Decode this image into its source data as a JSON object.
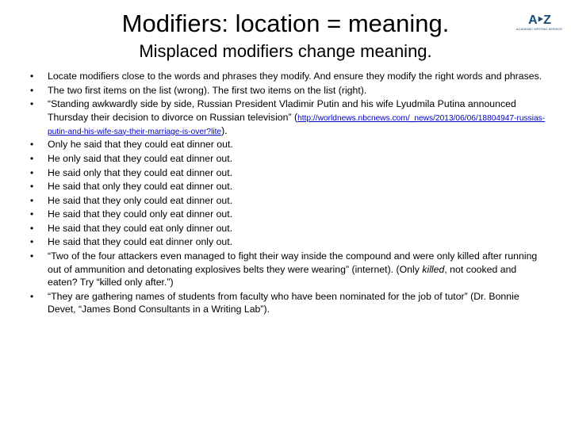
{
  "title": "Modifiers: location = meaning.",
  "subtitle": "Misplaced modifiers change meaning.",
  "logo": {
    "mark": "A‣Z",
    "sub": "ACADEMIC WRITING SERVICE"
  },
  "link": {
    "prefix": "(",
    "url": "http://worldnews.nbcnews.com/_news/2013/06/06/18804947-russias-putin-and-his-wife-say-their-marriage-is-over?lite",
    "suffix": ")."
  },
  "bullets": [
    "Locate modifiers close to the words and phrases they modify. And ensure they modify the right words and phrases.",
    "The two first items on the list (wrong). The first two items on the list (right).",
    "“Standing awkwardly side by side, Russian President Vladimir Putin and his wife Lyudmila Putina announced Thursday their decision to divorce on Russian television”",
    "Only he said that they could eat dinner out.",
    "He only said that they could eat dinner out.",
    "He said only that they could eat dinner out.",
    "He said that only they could eat dinner out.",
    "He said that they only could eat dinner out.",
    "He said that they could only eat dinner out.",
    "He said that they could eat only dinner out.",
    "He said that they could eat dinner only out.",
    "",
    "“They are gathering names of students from faculty who have been nominated for the job of tutor” (Dr. Bonnie Devet, “James Bond Consultants in a Writing Lab”)."
  ],
  "bullet11_parts": {
    "a": "“Two of the four attackers even managed to fight their way inside the compound and were only killed after running out of ammunition and detonating explosives belts they were wearing” (internet). (Only ",
    "b": "killed",
    "c": ", not cooked and eaten? Try “killed only after.”)"
  }
}
